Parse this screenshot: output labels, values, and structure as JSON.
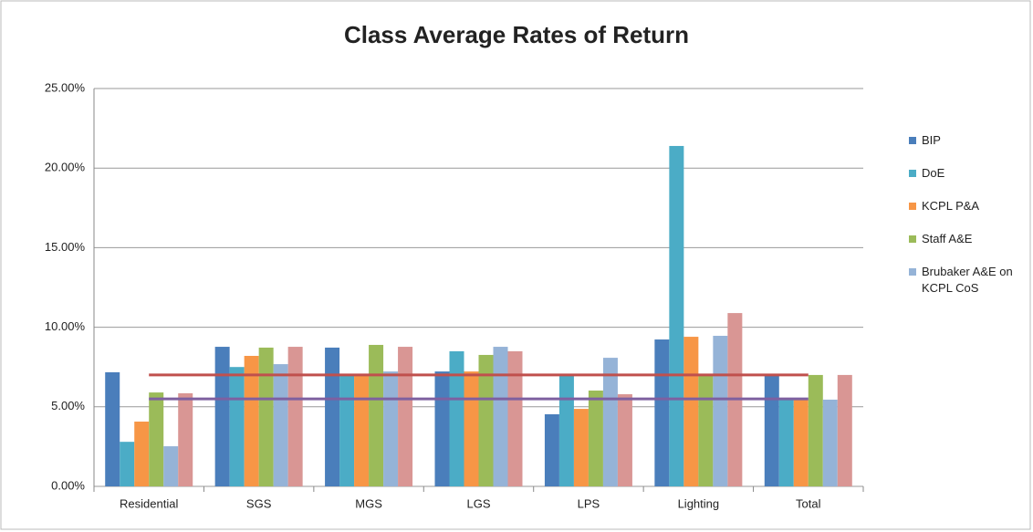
{
  "chart_data": {
    "type": "bar",
    "title": "Class Average Rates of Return",
    "categories": [
      "Residential",
      "SGS",
      "MGS",
      "LGS",
      "LPS",
      "Lighting",
      "Total"
    ],
    "series": [
      {
        "name": "BIP",
        "color": "#4a7ebb",
        "values": [
          7.17,
          8.77,
          8.72,
          7.22,
          4.53,
          9.23,
          7.0
        ]
      },
      {
        "name": "DoE",
        "color": "#4bacc6",
        "values": [
          2.8,
          7.5,
          6.94,
          8.49,
          7.0,
          21.39,
          5.45
        ]
      },
      {
        "name": "KCPL P&A",
        "color": "#f79646",
        "values": [
          4.07,
          8.2,
          7.0,
          7.22,
          4.87,
          9.4,
          5.45
        ]
      },
      {
        "name": "Staff A&E",
        "color": "#9bbb59",
        "values": [
          5.9,
          8.72,
          8.89,
          8.26,
          6.02,
          7.0,
          7.0
        ]
      },
      {
        "name": "Brubaker A&E on KCPL CoS",
        "color": "#95b3d7",
        "values": [
          2.52,
          7.68,
          7.22,
          8.77,
          8.08,
          9.46,
          5.45
        ]
      },
      {
        "color": "#d99694",
        "values": [
          5.85,
          8.77,
          8.77,
          8.49,
          5.79,
          10.89,
          7.0
        ]
      }
    ],
    "reference_lines": [
      {
        "value": 7.0,
        "color": "#c0504d"
      },
      {
        "value": 5.5,
        "color": "#7e60a0"
      }
    ],
    "ylim": [
      0,
      25
    ],
    "yticks": [
      {
        "value": 0,
        "label": "0.00%"
      },
      {
        "value": 5,
        "label": "5.00%"
      },
      {
        "value": 10,
        "label": "10.00%"
      },
      {
        "value": 15,
        "label": "15.00%"
      },
      {
        "value": 20,
        "label": "20.00%"
      },
      {
        "value": 25,
        "label": "25.00%"
      }
    ],
    "grid": true,
    "legend": "right"
  }
}
